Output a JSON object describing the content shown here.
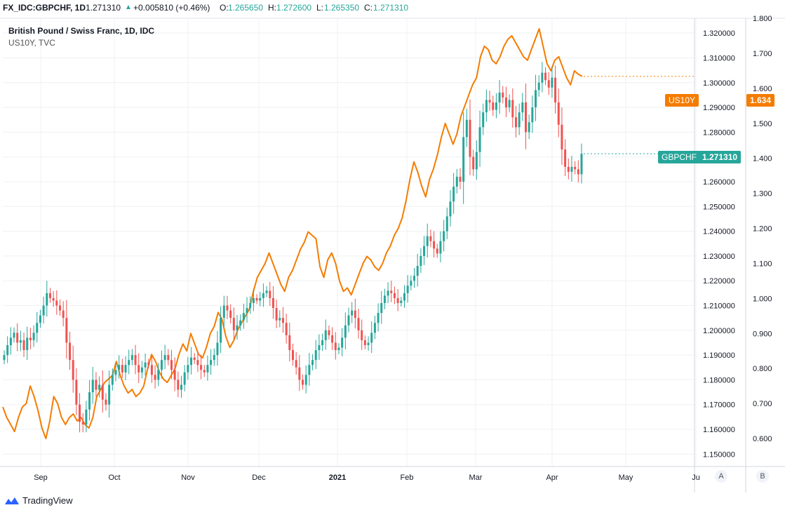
{
  "header": {
    "symbol": "FX_IDC:GBPCHF, 1D",
    "last": "1.271310",
    "arrow": "▲",
    "change": "+0.005810 (+0.46%)",
    "o_label": "O:",
    "o_value": "1.265650",
    "h_label": "H:",
    "h_value": "1.272600",
    "l_label": "L:",
    "l_value": "1.265350",
    "c_label": "C:",
    "c_value": "1.271310"
  },
  "legend": {
    "main": "British Pound / Swiss Franc, 1D, IDC",
    "overlay": "US10Y, TVC"
  },
  "tags": {
    "us10y_name": "US10Y",
    "us10y_value": "1.634",
    "gbpchf_name": "GBPCHF",
    "gbpchf_value": "1.271310"
  },
  "footer": {
    "brand": "TradingView",
    "scale_a": "A",
    "scale_b": "B"
  },
  "colors": {
    "up": "#26a69a",
    "down": "#ef5350",
    "overlay": "#f57c00",
    "grid": "#eef0f3"
  },
  "chart_data": {
    "type": "line",
    "x_tick_labels": [
      "Sep",
      "Oct",
      "Nov",
      "Dec",
      "2021",
      "Feb",
      "Mar",
      "Apr",
      "May",
      "Ju"
    ],
    "y_left_axis": {
      "range": [
        1.145,
        1.326
      ],
      "ticks": [
        "1.320000",
        "1.310000",
        "1.300000",
        "1.290000",
        "1.280000",
        "1.270000",
        "1.260000",
        "1.250000",
        "1.240000",
        "1.230000",
        "1.220000",
        "1.210000",
        "1.200000",
        "1.190000",
        "1.180000",
        "1.170000",
        "1.160000",
        "1.150000"
      ]
    },
    "y_right_axis": {
      "range": [
        0.52,
        1.8
      ],
      "ticks": [
        "1.800",
        "1.700",
        "1.600",
        "1.500",
        "1.400",
        "1.300",
        "1.200",
        "1.100",
        "1.000",
        "0.900",
        "0.800",
        "0.700",
        "0.600"
      ]
    },
    "grid": true,
    "series": [
      {
        "name": "GBPCHF",
        "kind": "candlestick",
        "axis": "left",
        "close": [
          1.19,
          1.194,
          1.197,
          1.199,
          1.195,
          1.196,
          1.192,
          1.197,
          1.196,
          1.199,
          1.203,
          1.206,
          1.21,
          1.215,
          1.213,
          1.212,
          1.21,
          1.208,
          1.205,
          1.195,
          1.188,
          1.18,
          1.17,
          1.163,
          1.162,
          1.168,
          1.175,
          1.18,
          1.176,
          1.178,
          1.172,
          1.17,
          1.178,
          1.182,
          1.184,
          1.186,
          1.183,
          1.186,
          1.188,
          1.19,
          1.186,
          1.183,
          1.185,
          1.187,
          1.186,
          1.182,
          1.18,
          1.184,
          1.188,
          1.19,
          1.188,
          1.184,
          1.18,
          1.176,
          1.178,
          1.183,
          1.186,
          1.189,
          1.188,
          1.186,
          1.184,
          1.183,
          1.186,
          1.188,
          1.19,
          1.195,
          1.205,
          1.21,
          1.208,
          1.205,
          1.2,
          1.202,
          1.204,
          1.207,
          1.209,
          1.211,
          1.213,
          1.212,
          1.213,
          1.215,
          1.216,
          1.213,
          1.209,
          1.204,
          1.205,
          1.203,
          1.198,
          1.192,
          1.188,
          1.185,
          1.18,
          1.178,
          1.182,
          1.186,
          1.188,
          1.192,
          1.194,
          1.196,
          1.2,
          1.198,
          1.195,
          1.192,
          1.193,
          1.197,
          1.202,
          1.206,
          1.208,
          1.205,
          1.2,
          1.196,
          1.194,
          1.195,
          1.199,
          1.203,
          1.207,
          1.211,
          1.214,
          1.216,
          1.215,
          1.213,
          1.211,
          1.212,
          1.215,
          1.218,
          1.22,
          1.222,
          1.226,
          1.23,
          1.234,
          1.238,
          1.236,
          1.233,
          1.231,
          1.236,
          1.24,
          1.246,
          1.252,
          1.258,
          1.262,
          1.26,
          1.278,
          1.285,
          1.27,
          1.265,
          1.272,
          1.282,
          1.288,
          1.293,
          1.292,
          1.289,
          1.292,
          1.296,
          1.294,
          1.29,
          1.293,
          1.286,
          1.282,
          1.288,
          1.292,
          1.28,
          1.284,
          1.29,
          1.297,
          1.3,
          1.304,
          1.301,
          1.298,
          1.302,
          1.292,
          1.283,
          1.273,
          1.266,
          1.264,
          1.266,
          1.265,
          1.263,
          1.2713
        ]
      },
      {
        "name": "US10Y",
        "kind": "line",
        "axis": "right",
        "values": [
          0.69,
          0.66,
          0.64,
          0.62,
          0.66,
          0.69,
          0.7,
          0.75,
          0.72,
          0.68,
          0.63,
          0.6,
          0.65,
          0.72,
          0.7,
          0.66,
          0.64,
          0.66,
          0.67,
          0.65,
          0.66,
          0.64,
          0.63,
          0.66,
          0.72,
          0.74,
          0.76,
          0.77,
          0.78,
          0.82,
          0.78,
          0.75,
          0.73,
          0.74,
          0.72,
          0.73,
          0.75,
          0.8,
          0.84,
          0.82,
          0.79,
          0.77,
          0.76,
          0.78,
          0.8,
          0.84,
          0.87,
          0.85,
          0.9,
          0.87,
          0.84,
          0.83,
          0.86,
          0.9,
          0.92,
          0.96,
          0.94,
          0.89,
          0.86,
          0.88,
          0.91,
          0.93,
          0.95,
          0.97,
          1.02,
          1.06,
          1.08,
          1.1,
          1.13,
          1.1,
          1.07,
          1.04,
          1.02,
          1.06,
          1.08,
          1.11,
          1.14,
          1.16,
          1.19,
          1.18,
          1.17,
          1.09,
          1.06,
          1.11,
          1.13,
          1.1,
          1.05,
          1.02,
          1.03,
          1.01,
          1.04,
          1.07,
          1.1,
          1.12,
          1.11,
          1.09,
          1.08,
          1.1,
          1.13,
          1.15,
          1.18,
          1.2,
          1.23,
          1.28,
          1.34,
          1.39,
          1.36,
          1.32,
          1.29,
          1.34,
          1.37,
          1.41,
          1.46,
          1.5,
          1.47,
          1.44,
          1.47,
          1.52,
          1.55,
          1.58,
          1.61,
          1.63,
          1.69,
          1.72,
          1.71,
          1.68,
          1.67,
          1.69,
          1.72,
          1.74,
          1.75,
          1.73,
          1.71,
          1.69,
          1.68,
          1.71,
          1.74,
          1.77,
          1.72,
          1.67,
          1.65,
          1.68,
          1.69,
          1.66,
          1.63,
          1.61,
          1.65,
          1.64,
          1.634
        ]
      }
    ]
  }
}
